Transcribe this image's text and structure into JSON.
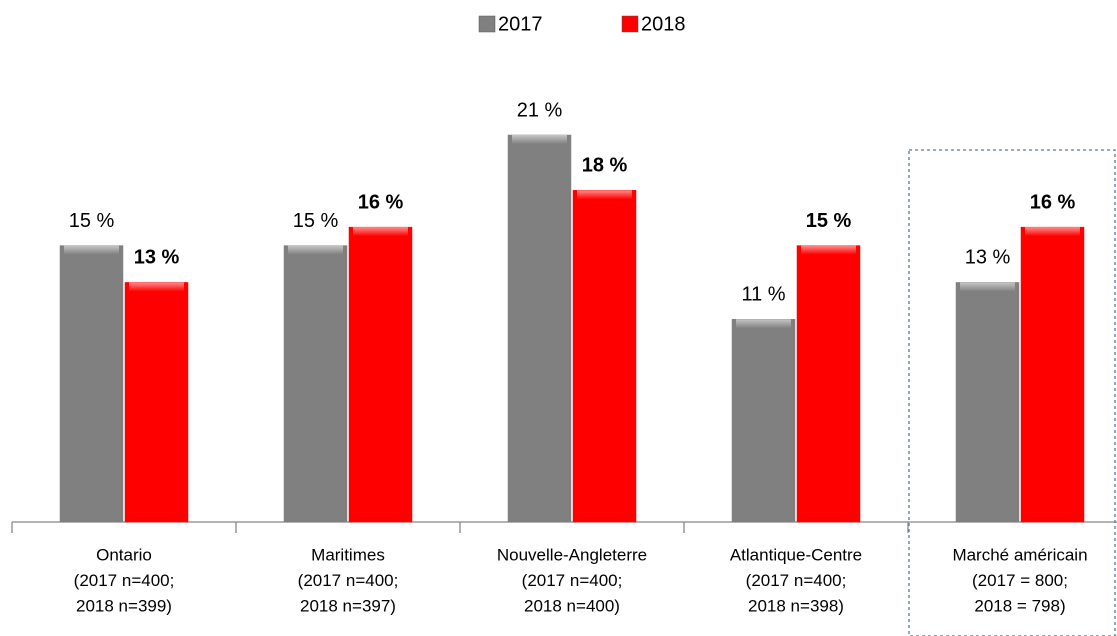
{
  "chart_data": {
    "type": "bar",
    "categories": [
      [
        "Ontario",
        "(2017 n=400;",
        "2018 n=399)"
      ],
      [
        "Maritimes",
        "(2017 n=400;",
        "2018 n=397)"
      ],
      [
        "Nouvelle-Angleterre",
        "(2017 n=400;",
        "2018 n=400)"
      ],
      [
        "Atlantique-Centre",
        "(2017 n=400;",
        "2018 n=398)"
      ],
      [
        "Marché américain",
        "(2017 = 800;",
        "2018 = 798)"
      ]
    ],
    "series": [
      {
        "name": "2017",
        "color": "#808080",
        "values": [
          15,
          15,
          21,
          11,
          13
        ],
        "value_labels": [
          "15 %",
          "15 %",
          "21 %",
          "11 %",
          "13 %"
        ]
      },
      {
        "name": "2018",
        "color": "#ff0000",
        "values": [
          13,
          16,
          18,
          15,
          16
        ],
        "value_labels": [
          "13 %",
          "16 %",
          "18 %",
          "15 %",
          "16 %"
        ]
      }
    ],
    "ylim": [
      0,
      21
    ],
    "legend": "top"
  }
}
